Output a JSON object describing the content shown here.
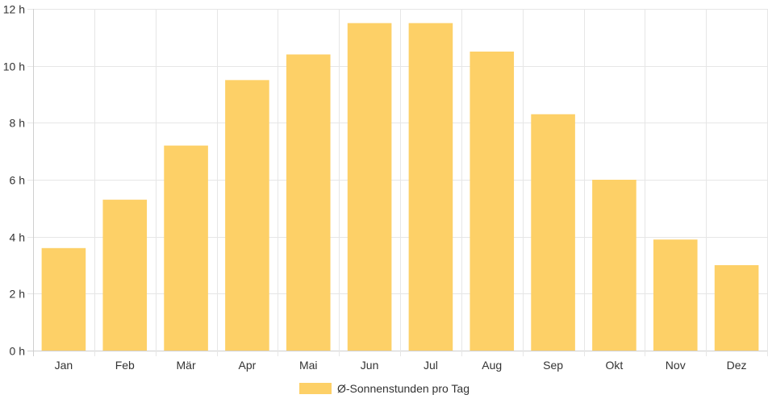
{
  "chart_data": {
    "type": "bar",
    "categories": [
      "Jan",
      "Feb",
      "Mär",
      "Apr",
      "Mai",
      "Jun",
      "Jul",
      "Aug",
      "Sep",
      "Okt",
      "Nov",
      "Dez"
    ],
    "series": [
      {
        "name": "Ø-Sonnenstunden pro Tag",
        "values": [
          3.6,
          5.3,
          7.2,
          9.5,
          10.4,
          11.5,
          11.5,
          10.5,
          8.3,
          6.0,
          3.9,
          3.0
        ],
        "color": "#fdd067"
      }
    ],
    "y_ticks": [
      "0 h",
      "2 h",
      "4 h",
      "6 h",
      "8 h",
      "10 h",
      "12 h"
    ],
    "ylim": [
      0,
      12
    ],
    "grid": true,
    "legend_position": "bottom",
    "colors": {
      "grid": "#e6e6e6",
      "axis": "#cfcfcf",
      "text": "#333333"
    }
  }
}
